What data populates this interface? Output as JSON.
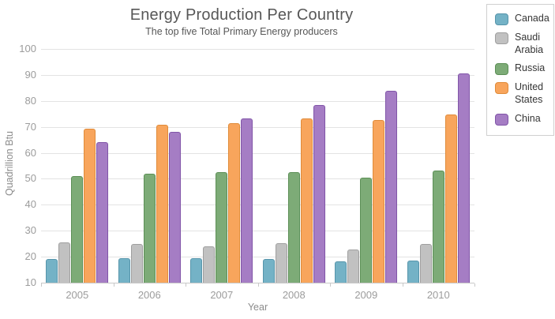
{
  "chart_data": {
    "type": "bar",
    "title": "Energy Production Per Country",
    "subtitle": "The top five Total Primary Energy producers",
    "xlabel": "Year",
    "ylabel": "Quadrillion Btu",
    "categories": [
      "2005",
      "2006",
      "2007",
      "2008",
      "2009",
      "2010"
    ],
    "series": [
      {
        "name": "Canada",
        "color": "#74b2c6",
        "border_color": "#5795ab",
        "values": [
          19.1,
          19.3,
          19.5,
          19.2,
          18.3,
          18.4
        ]
      },
      {
        "name": "Saudi Arabia",
        "color": "#c1c1c1",
        "border_color": "#9f9f9f",
        "values": [
          25.5,
          24.9,
          23.9,
          25.3,
          22.8,
          24.8
        ]
      },
      {
        "name": "Russia",
        "color": "#7dab77",
        "border_color": "#5c8f56",
        "values": [
          51.1,
          52.1,
          52.6,
          52.6,
          50.5,
          53.3
        ]
      },
      {
        "name": "United States",
        "color": "#f8a55c",
        "border_color": "#e08b39",
        "values": [
          69.4,
          70.7,
          71.4,
          73.4,
          72.6,
          74.8
        ]
      },
      {
        "name": "China",
        "color": "#a57dc4",
        "border_color": "#8155a8",
        "values": [
          64.0,
          68.1,
          73.2,
          78.3,
          84.0,
          90.5
        ]
      }
    ],
    "ylim": [
      10,
      100
    ],
    "ytick_step": 10,
    "grid": "horizontal",
    "legend_position": "right",
    "grid_color": "#e3e3e3",
    "axis_color": "#c9c9c9",
    "tick_label_color": "#9c9c9c"
  }
}
